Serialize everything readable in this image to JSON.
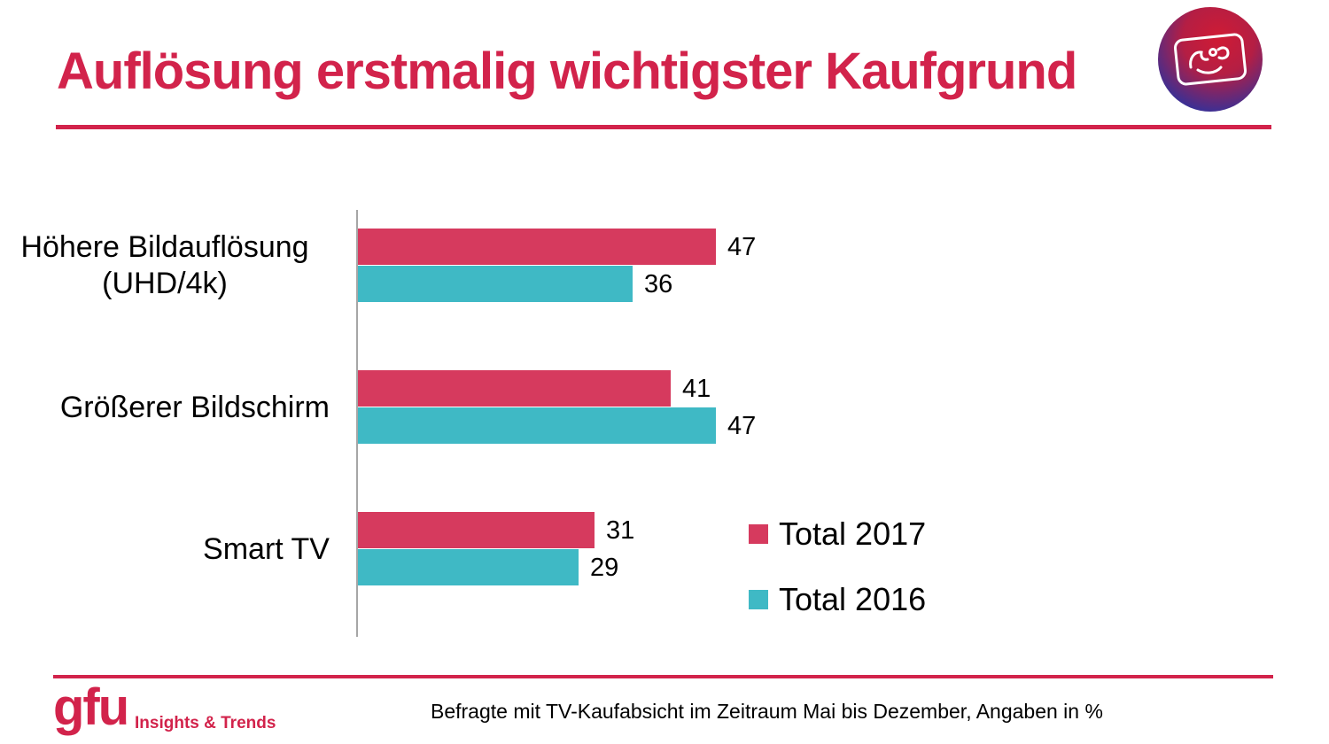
{
  "title": "Auflösung erstmalig wichtigster Kaufgrund",
  "chart_data": {
    "type": "bar",
    "orientation": "horizontal",
    "title": "Auflösung erstmalig wichtigster Kaufgrund",
    "categories": [
      "Höhere Bildauflösung (UHD/4k)",
      "Größerer Bildschirm",
      "Smart TV"
    ],
    "series": [
      {
        "name": "Total 2017",
        "color": "#d63a5e",
        "values": [
          47,
          41,
          31
        ]
      },
      {
        "name": "Total 2016",
        "color": "#3fb9c5",
        "values": [
          36,
          47,
          29
        ]
      }
    ],
    "value_labels": true,
    "xlim": [
      0,
      56
    ],
    "grid": false,
    "legend_position": "center-right"
  },
  "footer": {
    "note": "Befragte mit TV-Kaufabsicht im Zeitraum Mai bis Dezember, Angaben in %",
    "brand_name": "gfu",
    "brand_tagline": "Insights & Trends"
  },
  "icons": {
    "emblem": "gfu-tv-face-emblem"
  },
  "colors": {
    "accent_red": "#d2234b",
    "bar_red": "#d63a5e",
    "bar_teal": "#3fb9c5",
    "axis_gray": "#a6a6a6"
  }
}
